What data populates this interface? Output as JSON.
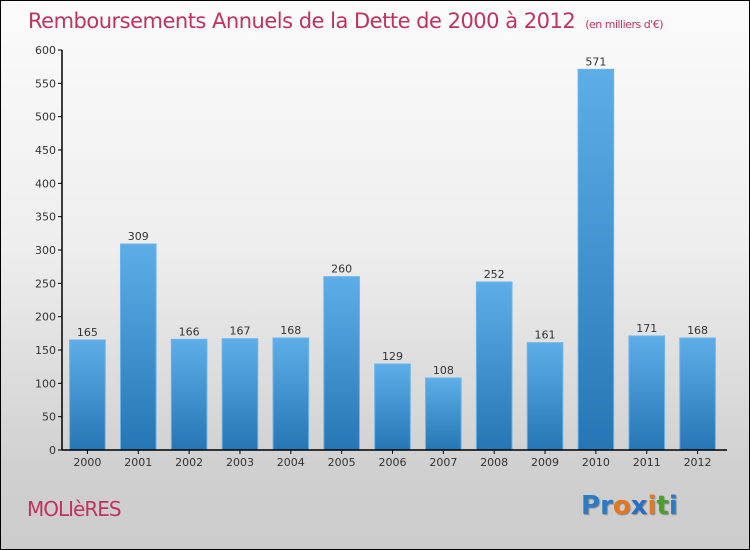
{
  "header": {
    "title": "Remboursements Annuels de la Dette de 2000 à 2012",
    "subtitle": "(en milliers d'€)"
  },
  "footer": {
    "commune": "MOLIèRES",
    "logo": [
      "P",
      "r",
      "o",
      "x",
      "i",
      "t",
      "i"
    ],
    "logo_colors": [
      "#2a7bc4",
      "#2a7bc4",
      "#e2781e",
      "#2a6fc4",
      "#e2781e",
      "#4a9e2a",
      "#2a7bc4"
    ]
  },
  "chart_data": {
    "type": "bar",
    "title": "Remboursements Annuels de la Dette de 2000 à 2012",
    "subtitle": "(en milliers d'€)",
    "xlabel": "",
    "ylabel": "",
    "categories": [
      "2000",
      "2001",
      "2002",
      "2003",
      "2004",
      "2005",
      "2006",
      "2007",
      "2008",
      "2009",
      "2010",
      "2011",
      "2012"
    ],
    "values": [
      165,
      309,
      166,
      167,
      168,
      260,
      129,
      108,
      252,
      161,
      571,
      171,
      168
    ],
    "ylim": [
      0,
      600
    ],
    "yticks": [
      0,
      50,
      100,
      150,
      200,
      250,
      300,
      350,
      400,
      450,
      500,
      550,
      600
    ],
    "grid": false,
    "bar_color": "#3a8fd4"
  }
}
